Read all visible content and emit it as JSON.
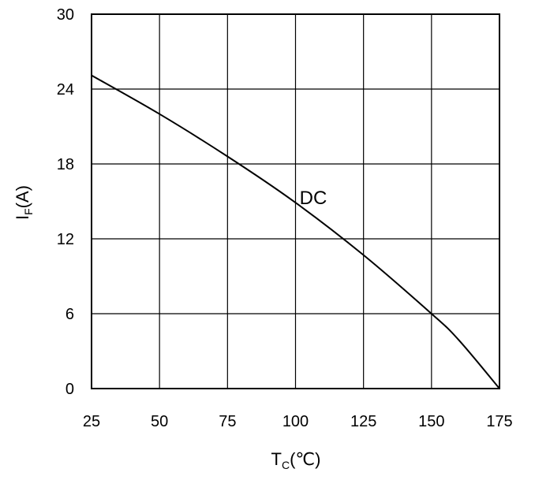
{
  "chart_data": {
    "type": "line",
    "title": "",
    "xlabel": "T",
    "xlabel_sub": "C",
    "xlabel_unit": "(℃)",
    "ylabel": "I",
    "ylabel_sub": "F",
    "ylabel_unit": "(A)",
    "xlim": [
      25,
      175
    ],
    "ylim": [
      0,
      30
    ],
    "xticks": [
      25,
      50,
      75,
      100,
      125,
      150,
      175
    ],
    "yticks": [
      0,
      6,
      12,
      18,
      24,
      30
    ],
    "grid": true,
    "series": [
      {
        "label": "DC",
        "line_color": "#000000",
        "x": [
          25,
          50,
          75,
          100,
          125,
          150,
          160,
          175
        ],
        "y": [
          25.1,
          22.0,
          18.6,
          14.9,
          10.7,
          6.0,
          3.9,
          0
        ]
      }
    ]
  }
}
